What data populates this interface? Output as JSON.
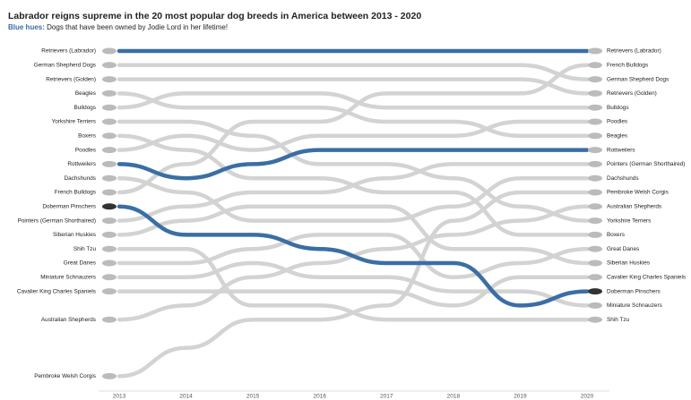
{
  "chart_data": {
    "type": "bump",
    "title": "Labrador reigns supreme in the 20 most popular dog breeds in America between 2013 - 2020",
    "subtitle_label": "Blue hues:",
    "subtitle": "Dogs that have been owned by Jodie Lord in her lifetime!",
    "x": [
      2013,
      2014,
      2015,
      2016,
      2017,
      2018,
      2019,
      2020
    ],
    "series": [
      {
        "name": "Retrievers (Labrador)",
        "color": "#3a6ea5",
        "values": [
          1,
          1,
          1,
          1,
          1,
          1,
          1,
          1
        ]
      },
      {
        "name": "German Shepherd Dogs",
        "color": "#d3d3d3",
        "values": [
          2,
          2,
          2,
          2,
          2,
          2,
          2,
          3
        ]
      },
      {
        "name": "Retrievers (Golden)",
        "color": "#d3d3d3",
        "values": [
          3,
          3,
          3,
          3,
          3,
          3,
          3,
          4
        ]
      },
      {
        "name": "Beagles",
        "color": "#d3d3d3",
        "values": [
          4,
          5,
          5,
          5,
          6,
          6,
          7,
          7
        ]
      },
      {
        "name": "Bulldogs",
        "color": "#d3d3d3",
        "values": [
          5,
          4,
          4,
          4,
          5,
          5,
          5,
          5
        ]
      },
      {
        "name": "Yorkshire Terriers",
        "color": "#d3d3d3",
        "values": [
          6,
          6,
          7,
          9,
          9,
          10,
          12,
          13
        ]
      },
      {
        "name": "Boxers",
        "color": "#d3d3d3",
        "values": [
          7,
          8,
          10,
          10,
          11,
          11,
          14,
          14
        ]
      },
      {
        "name": "Poodles",
        "color": "#d3d3d3",
        "values": [
          8,
          7,
          8,
          7,
          7,
          7,
          6,
          6
        ]
      },
      {
        "name": "Rottweilers",
        "color": "#3a6ea5",
        "values": [
          9,
          10,
          9,
          8,
          8,
          8,
          8,
          8
        ]
      },
      {
        "name": "Dachshunds",
        "color": "#d3d3d3",
        "values": [
          10,
          11,
          13,
          13,
          13,
          12,
          10,
          10
        ]
      },
      {
        "name": "French Bulldogs",
        "color": "#d3d3d3",
        "values": [
          11,
          9,
          6,
          6,
          4,
          4,
          4,
          2
        ]
      },
      {
        "name": "Doberman Pinschers",
        "color": "#3a6ea5",
        "values": [
          12,
          14,
          14,
          15,
          16,
          16,
          19,
          18
        ]
      },
      {
        "name": "Pointers (German Shorthaired)",
        "color": "#d3d3d3",
        "values": [
          13,
          12,
          11,
          11,
          10,
          9,
          9,
          9
        ]
      },
      {
        "name": "Siberian Huskies",
        "color": "#d3d3d3",
        "values": [
          14,
          13,
          12,
          12,
          12,
          15,
          15,
          16
        ]
      },
      {
        "name": "Shih Tzu",
        "color": "#d3d3d3",
        "values": [
          15,
          15,
          19,
          19,
          20,
          20,
          20,
          20
        ]
      },
      {
        "name": "Great Danes",
        "color": "#d3d3d3",
        "values": [
          16,
          16,
          15,
          14,
          14,
          17,
          16,
          15
        ]
      },
      {
        "name": "Miniature Schnauzers",
        "color": "#d3d3d3",
        "values": [
          17,
          17,
          16,
          17,
          17,
          18,
          18,
          19
        ]
      },
      {
        "name": "Cavalier King Charles Spaniels",
        "color": "#d3d3d3",
        "values": [
          18,
          18,
          18,
          18,
          18,
          19,
          17,
          17
        ]
      },
      {
        "name": "Australian Shepherds",
        "color": "#d3d3d3",
        "values": [
          20,
          19,
          17,
          16,
          15,
          14,
          13,
          12
        ]
      },
      {
        "name": "Pembroke Welsh Corgis",
        "color": "#d3d3d3",
        "values": [
          24,
          22,
          20,
          20,
          19,
          13,
          11,
          11
        ]
      }
    ]
  }
}
